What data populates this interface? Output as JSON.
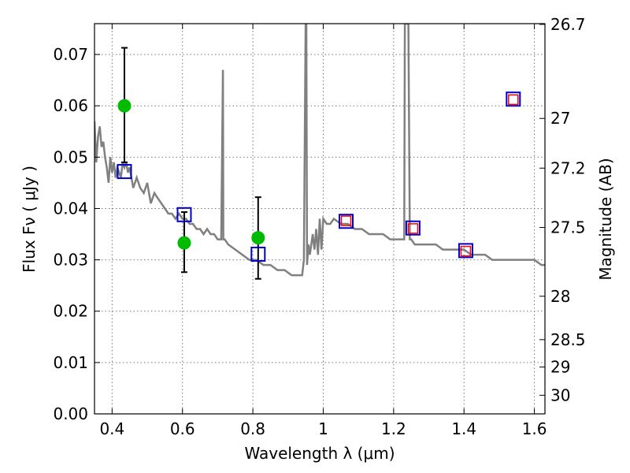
{
  "chart_data": {
    "type": "scatter",
    "xlabel": "Wavelength  λ (μm)",
    "ylabel": "Flux  Fν  ( μJy )",
    "y2label": "Magnitude (AB)",
    "xlim": [
      0.35,
      1.63
    ],
    "ylim": [
      0.0,
      0.076
    ],
    "grid": true,
    "xticks": [
      {
        "value": 0.4,
        "label": "0.4"
      },
      {
        "value": 0.6,
        "label": "0.6"
      },
      {
        "value": 0.8,
        "label": "0.8"
      },
      {
        "value": 1.0,
        "label": "1"
      },
      {
        "value": 1.2,
        "label": "1.2"
      },
      {
        "value": 1.4,
        "label": "1.4"
      },
      {
        "value": 1.6,
        "label": "1.6"
      }
    ],
    "yticks": [
      {
        "value": 0.0,
        "label": "0.00"
      },
      {
        "value": 0.01,
        "label": "0.01"
      },
      {
        "value": 0.02,
        "label": "0.02"
      },
      {
        "value": 0.03,
        "label": "0.03"
      },
      {
        "value": 0.04,
        "label": "0.04"
      },
      {
        "value": 0.05,
        "label": "0.05"
      },
      {
        "value": 0.06,
        "label": "0.06"
      },
      {
        "value": 0.07,
        "label": "0.07"
      }
    ],
    "y2ticks": [
      {
        "value": 26.7,
        "label": "26.7"
      },
      {
        "value": 27.0,
        "label": "27"
      },
      {
        "value": 27.2,
        "label": "27.2"
      },
      {
        "value": 27.5,
        "label": "27.5"
      },
      {
        "value": 28.0,
        "label": "28"
      },
      {
        "value": 28.5,
        "label": "28.5"
      },
      {
        "value": 29.0,
        "label": "29"
      },
      {
        "value": 30.0,
        "label": "30"
      }
    ],
    "colors": {
      "template": "#808080",
      "observed": "#00bb00",
      "model_blue": "#0000cc",
      "model_red": "#ff0000",
      "errorbar": "#000000"
    },
    "template_spectrum": {
      "x": [
        0.35,
        0.355,
        0.36,
        0.365,
        0.37,
        0.375,
        0.38,
        0.385,
        0.39,
        0.395,
        0.4,
        0.405,
        0.41,
        0.415,
        0.42,
        0.425,
        0.43,
        0.435,
        0.44,
        0.445,
        0.45,
        0.455,
        0.46,
        0.47,
        0.48,
        0.49,
        0.5,
        0.51,
        0.52,
        0.53,
        0.54,
        0.55,
        0.56,
        0.57,
        0.58,
        0.59,
        0.6,
        0.61,
        0.62,
        0.63,
        0.64,
        0.65,
        0.66,
        0.67,
        0.68,
        0.69,
        0.7,
        0.71,
        0.715,
        0.716,
        0.72,
        0.73,
        0.75,
        0.77,
        0.79,
        0.81,
        0.83,
        0.85,
        0.87,
        0.89,
        0.91,
        0.93,
        0.94,
        0.945,
        0.95,
        0.952,
        0.954,
        0.958,
        0.962,
        0.97,
        0.975,
        0.98,
        0.985,
        0.99,
        0.995,
        1.0,
        1.01,
        1.02,
        1.03,
        1.05,
        1.07,
        1.09,
        1.11,
        1.13,
        1.15,
        1.17,
        1.19,
        1.21,
        1.225,
        1.23,
        1.232,
        1.238,
        1.242,
        1.246,
        1.25,
        1.26,
        1.28,
        1.3,
        1.32,
        1.34,
        1.36,
        1.38,
        1.4,
        1.42,
        1.44,
        1.46,
        1.48,
        1.5,
        1.52,
        1.54,
        1.56,
        1.58,
        1.6,
        1.62,
        1.63
      ],
      "y": [
        0.057,
        0.049,
        0.054,
        0.056,
        0.052,
        0.053,
        0.05,
        0.048,
        0.045,
        0.05,
        0.047,
        0.049,
        0.046,
        0.048,
        0.047,
        0.046,
        0.049,
        0.048,
        0.049,
        0.047,
        0.048,
        0.046,
        0.044,
        0.046,
        0.044,
        0.043,
        0.045,
        0.041,
        0.043,
        0.042,
        0.041,
        0.04,
        0.039,
        0.039,
        0.038,
        0.039,
        0.038,
        0.038,
        0.037,
        0.037,
        0.036,
        0.036,
        0.035,
        0.036,
        0.035,
        0.035,
        0.034,
        0.034,
        0.067,
        0.034,
        0.034,
        0.033,
        0.032,
        0.031,
        0.03,
        0.03,
        0.029,
        0.029,
        0.028,
        0.028,
        0.027,
        0.027,
        0.027,
        0.03,
        0.076,
        0.076,
        0.029,
        0.033,
        0.031,
        0.035,
        0.032,
        0.036,
        0.031,
        0.038,
        0.032,
        0.038,
        0.037,
        0.037,
        0.038,
        0.037,
        0.037,
        0.036,
        0.036,
        0.035,
        0.035,
        0.035,
        0.034,
        0.034,
        0.034,
        0.034,
        0.076,
        0.076,
        0.076,
        0.034,
        0.034,
        0.033,
        0.033,
        0.033,
        0.033,
        0.032,
        0.032,
        0.032,
        0.032,
        0.031,
        0.031,
        0.031,
        0.03,
        0.03,
        0.03,
        0.03,
        0.03,
        0.03,
        0.03,
        0.029,
        0.029
      ]
    },
    "observed_points": [
      {
        "x": 0.435,
        "y": 0.06,
        "yerr_low": 0.049,
        "yerr_high": 0.0713
      },
      {
        "x": 0.605,
        "y": 0.0333,
        "yerr_low": 0.0276,
        "yerr_high": 0.0393
      },
      {
        "x": 0.815,
        "y": 0.0343,
        "yerr_low": 0.0263,
        "yerr_high": 0.0422
      }
    ],
    "model_blue": [
      {
        "x": 0.435,
        "y": 0.0472
      },
      {
        "x": 0.605,
        "y": 0.0388
      },
      {
        "x": 0.815,
        "y": 0.0311
      },
      {
        "x": 1.065,
        "y": 0.0375
      },
      {
        "x": 1.255,
        "y": 0.0362
      },
      {
        "x": 1.405,
        "y": 0.0318
      },
      {
        "x": 1.54,
        "y": 0.0613
      }
    ],
    "model_red": [
      {
        "x": 1.065,
        "y": 0.0376
      },
      {
        "x": 1.255,
        "y": 0.0361
      },
      {
        "x": 1.405,
        "y": 0.0317
      },
      {
        "x": 1.54,
        "y": 0.0612
      }
    ]
  }
}
